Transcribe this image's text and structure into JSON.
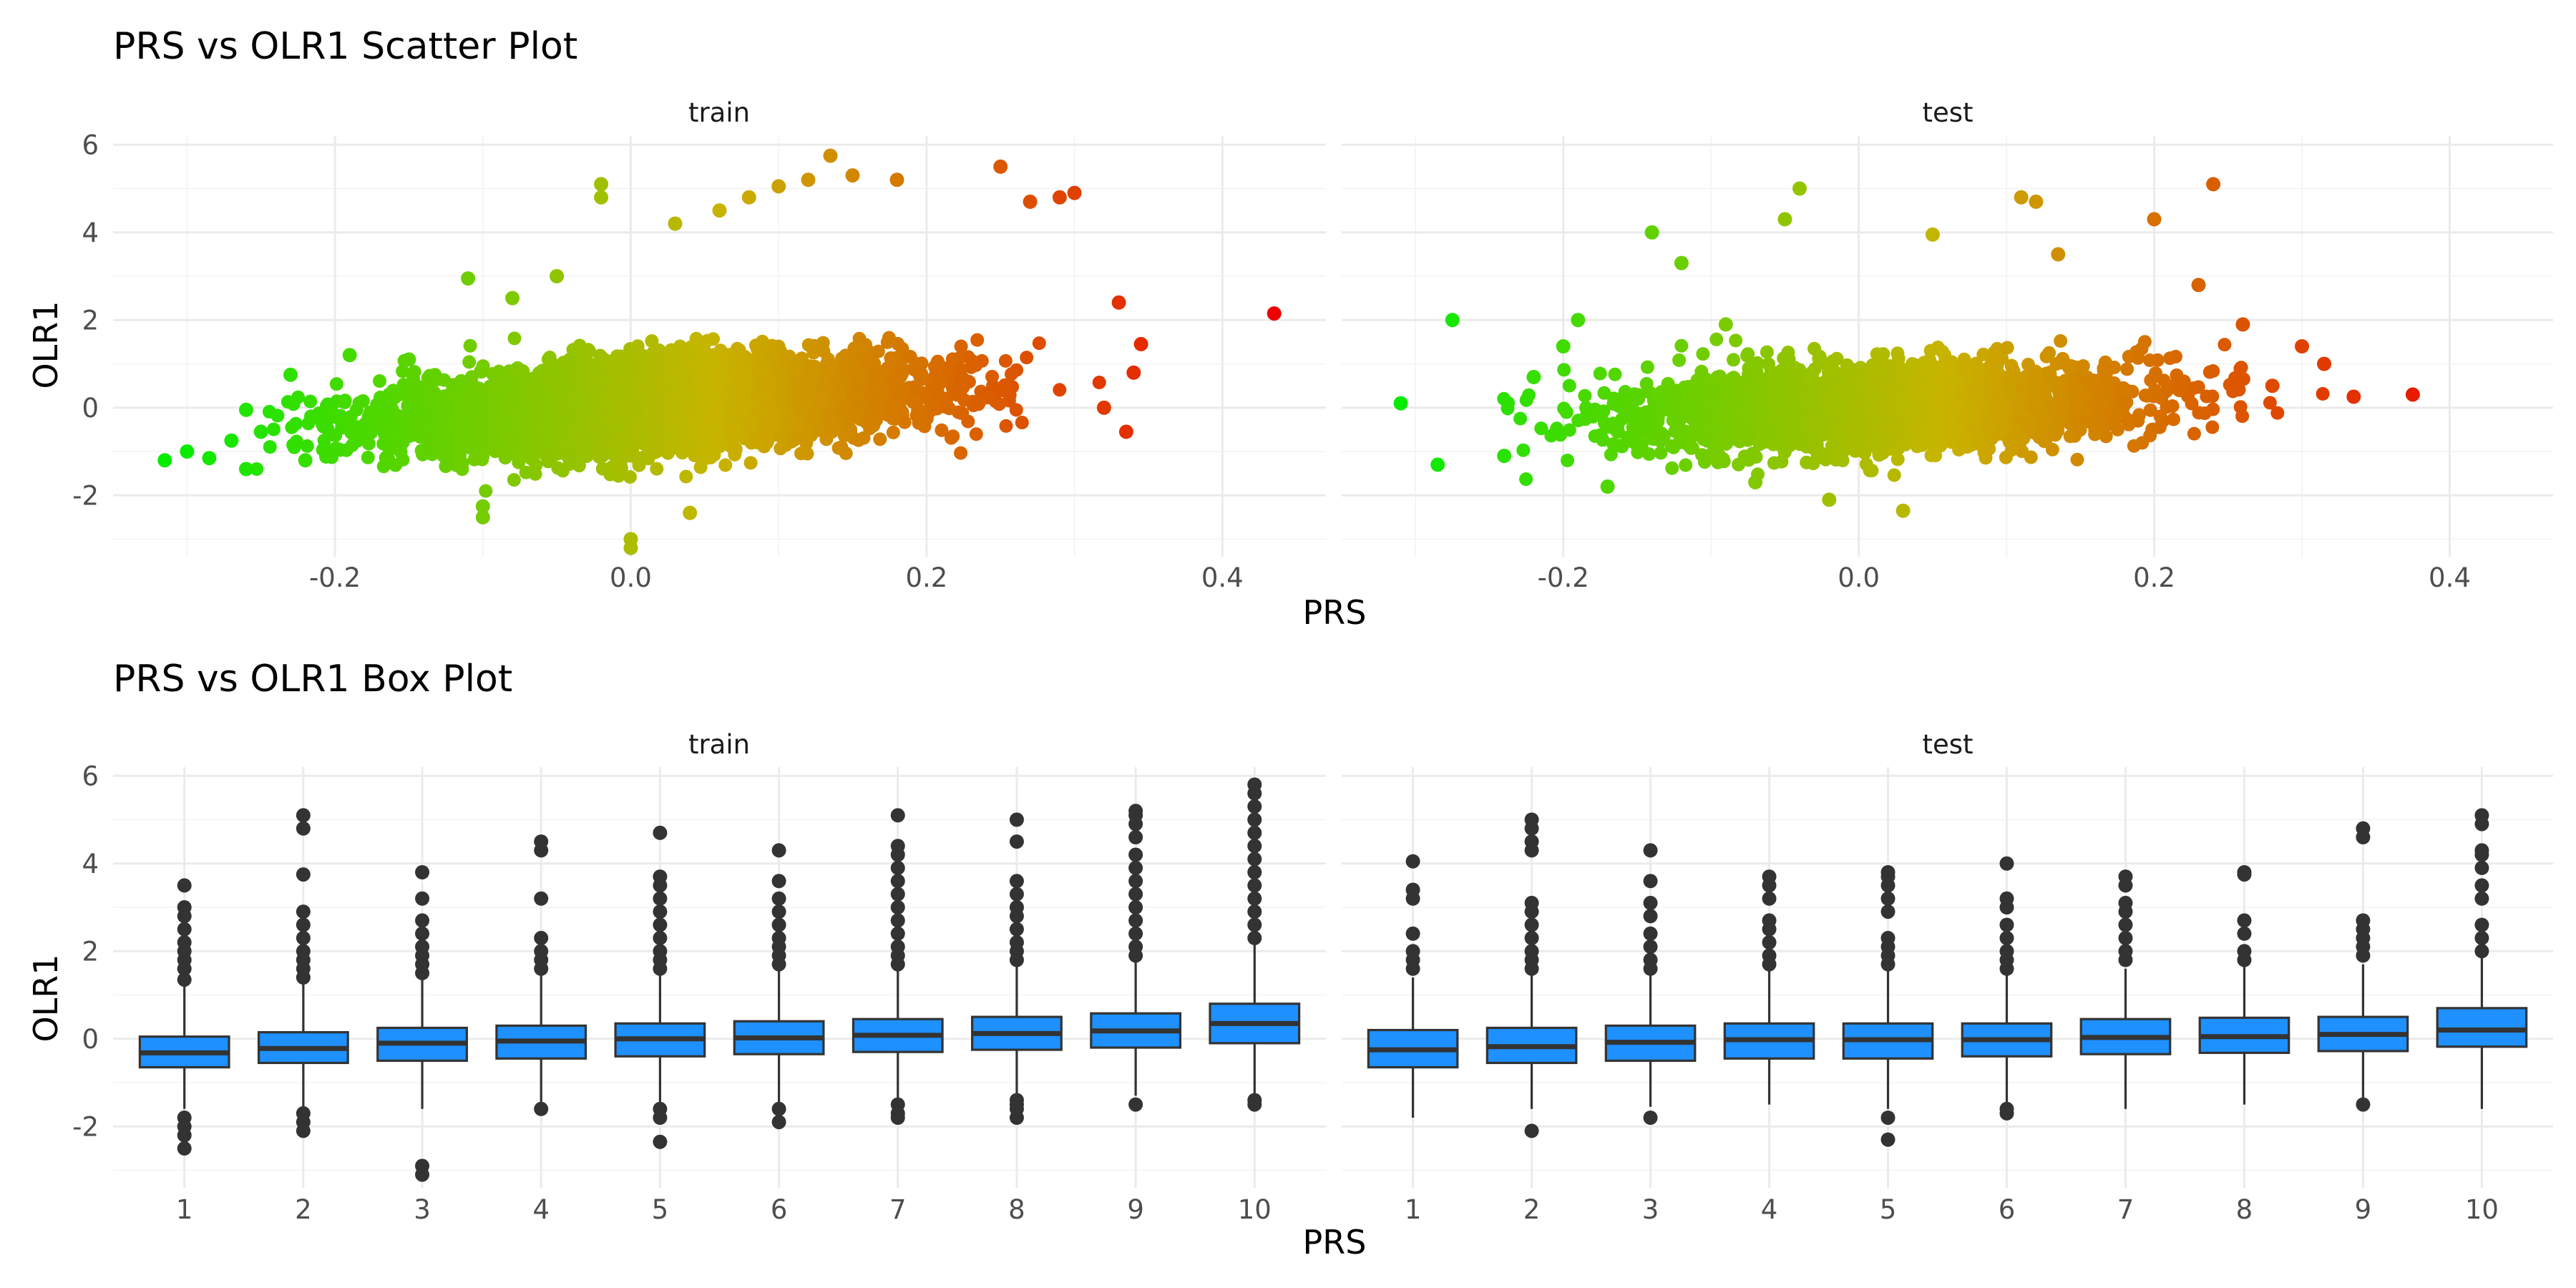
{
  "chart_data": [
    {
      "type": "scatter",
      "title": "PRS vs OLR1 Scatter Plot",
      "xlabel": "PRS",
      "ylabel": "OLR1",
      "xlim": [
        -0.35,
        0.47
      ],
      "ylim": [
        -3.4,
        6.2
      ],
      "x_ticks": [
        -0.2,
        0.0,
        0.2,
        0.4
      ],
      "x_tick_labels": [
        "-0.2",
        "0.0",
        "0.2",
        "0.4"
      ],
      "y_ticks": [
        -2,
        0,
        2,
        4,
        6
      ],
      "y_tick_labels": [
        "-2",
        "0",
        "2",
        "4",
        "6"
      ],
      "grid": true,
      "legend": "none",
      "color_scale": {
        "low": "#00ee00",
        "mid": "#c8b400",
        "high": "#ee0000",
        "mapped_to": "PRS"
      },
      "facets": [
        {
          "label": "train",
          "points": [
            [
              -0.315,
              -1.2
            ],
            [
              -0.3,
              -1.0
            ],
            [
              -0.285,
              -1.15
            ],
            [
              -0.27,
              -0.75
            ],
            [
              -0.26,
              -1.4
            ],
            [
              -0.26,
              -0.05
            ],
            [
              -0.25,
              -0.55
            ],
            [
              -0.23,
              0.75
            ],
            [
              -0.22,
              -1.2
            ],
            [
              -0.2,
              -0.2
            ],
            [
              -0.19,
              1.2
            ],
            [
              -0.15,
              1.1
            ],
            [
              -0.11,
              2.95
            ],
            [
              -0.1,
              -2.25
            ],
            [
              -0.1,
              -2.5
            ],
            [
              -0.08,
              2.5
            ],
            [
              -0.05,
              3.0
            ],
            [
              -0.02,
              5.1
            ],
            [
              -0.02,
              4.8
            ],
            [
              0.0,
              -3.0
            ],
            [
              0.0,
              -3.2
            ],
            [
              0.03,
              4.2
            ],
            [
              0.04,
              -2.4
            ],
            [
              0.06,
              4.5
            ],
            [
              0.08,
              4.8
            ],
            [
              0.1,
              5.05
            ],
            [
              0.12,
              5.2
            ],
            [
              0.135,
              5.75
            ],
            [
              0.15,
              5.3
            ],
            [
              0.18,
              5.2
            ],
            [
              0.25,
              5.5
            ],
            [
              0.27,
              4.7
            ],
            [
              0.29,
              4.8
            ],
            [
              0.3,
              4.9
            ],
            [
              0.32,
              0.0
            ],
            [
              0.33,
              2.4
            ],
            [
              0.335,
              -0.55
            ],
            [
              0.34,
              0.8
            ],
            [
              0.345,
              1.45
            ],
            [
              0.435,
              2.15
            ]
          ]
        },
        {
          "label": "test",
          "points": [
            [
              -0.31,
              0.1
            ],
            [
              -0.285,
              -1.3
            ],
            [
              -0.275,
              2.0
            ],
            [
              -0.24,
              -1.1
            ],
            [
              -0.22,
              0.7
            ],
            [
              -0.2,
              1.4
            ],
            [
              -0.19,
              2.0
            ],
            [
              -0.17,
              -1.8
            ],
            [
              -0.14,
              4.0
            ],
            [
              -0.12,
              3.3
            ],
            [
              -0.09,
              1.9
            ],
            [
              -0.07,
              -1.7
            ],
            [
              -0.05,
              4.3
            ],
            [
              -0.04,
              5.0
            ],
            [
              -0.02,
              -2.1
            ],
            [
              0.03,
              -2.35
            ],
            [
              0.05,
              3.95
            ],
            [
              0.11,
              4.8
            ],
            [
              0.12,
              4.7
            ],
            [
              0.135,
              3.5
            ],
            [
              0.2,
              4.3
            ],
            [
              0.23,
              2.8
            ],
            [
              0.24,
              5.1
            ],
            [
              0.26,
              1.9
            ],
            [
              0.28,
              0.5
            ],
            [
              0.3,
              1.4
            ],
            [
              0.315,
              1.0
            ],
            [
              0.335,
              0.25
            ],
            [
              0.375,
              0.3
            ]
          ]
        }
      ]
    },
    {
      "type": "box",
      "title": "PRS vs OLR1 Box Plot",
      "xlabel": "PRS",
      "ylabel": "OLR1",
      "categories": [
        "1",
        "2",
        "3",
        "4",
        "5",
        "6",
        "7",
        "8",
        "9",
        "10"
      ],
      "ylim": [
        -3.4,
        6.2
      ],
      "y_ticks": [
        -2,
        0,
        2,
        4,
        6
      ],
      "y_tick_labels": [
        "-2",
        "0",
        "2",
        "4",
        "6"
      ],
      "grid": true,
      "legend": "none",
      "box_color": "#1e90ff",
      "facets": [
        {
          "label": "train",
          "boxes": [
            {
              "q1": -0.65,
              "median": -0.32,
              "q3": 0.05,
              "low": -1.6,
              "high": 1.2,
              "outliers": [
                -1.8,
                -2.0,
                -2.2,
                -2.5,
                1.35,
                1.6,
                1.8,
                2.0,
                2.2,
                2.5,
                2.8,
                3.0,
                3.5
              ]
            },
            {
              "q1": -0.55,
              "median": -0.22,
              "q3": 0.15,
              "low": -1.6,
              "high": 1.3,
              "outliers": [
                -1.7,
                -1.9,
                -2.1,
                1.4,
                1.6,
                1.8,
                2.0,
                2.3,
                2.6,
                2.9,
                3.75,
                4.8,
                5.1
              ]
            },
            {
              "q1": -0.5,
              "median": -0.1,
              "q3": 0.25,
              "low": -1.6,
              "high": 1.4,
              "outliers": [
                -2.9,
                -3.1,
                1.5,
                1.7,
                1.9,
                2.1,
                2.4,
                2.7,
                3.2,
                3.8
              ]
            },
            {
              "q1": -0.45,
              "median": -0.05,
              "q3": 0.3,
              "low": -1.5,
              "high": 1.5,
              "outliers": [
                -1.6,
                1.6,
                1.8,
                2.0,
                2.3,
                3.2,
                4.3,
                4.5
              ]
            },
            {
              "q1": -0.4,
              "median": 0.0,
              "q3": 0.35,
              "low": -1.5,
              "high": 1.5,
              "outliers": [
                -1.6,
                -1.8,
                -2.35,
                1.6,
                1.8,
                2.0,
                2.3,
                2.6,
                2.9,
                3.2,
                3.5,
                3.7,
                4.7
              ]
            },
            {
              "q1": -0.35,
              "median": 0.02,
              "q3": 0.4,
              "low": -1.5,
              "high": 1.55,
              "outliers": [
                -1.6,
                -1.9,
                1.7,
                1.9,
                2.1,
                2.3,
                2.6,
                2.9,
                3.2,
                3.6,
                4.3
              ]
            },
            {
              "q1": -0.3,
              "median": 0.08,
              "q3": 0.45,
              "low": -1.4,
              "high": 1.6,
              "outliers": [
                -1.5,
                -1.7,
                -1.8,
                1.7,
                1.9,
                2.1,
                2.4,
                2.7,
                3.0,
                3.3,
                3.6,
                3.9,
                4.2,
                4.4,
                5.1
              ]
            },
            {
              "q1": -0.25,
              "median": 0.12,
              "q3": 0.5,
              "low": -1.35,
              "high": 1.65,
              "outliers": [
                -1.4,
                -1.5,
                -1.6,
                -1.8,
                1.8,
                2.0,
                2.2,
                2.5,
                2.8,
                3.0,
                3.3,
                3.6,
                4.5,
                5.0
              ]
            },
            {
              "q1": -0.2,
              "median": 0.18,
              "q3": 0.58,
              "low": -1.3,
              "high": 1.8,
              "outliers": [
                -1.5,
                1.9,
                2.1,
                2.4,
                2.7,
                3.0,
                3.3,
                3.6,
                3.9,
                4.2,
                4.6,
                4.9,
                5.1,
                5.2
              ]
            },
            {
              "q1": -0.1,
              "median": 0.35,
              "q3": 0.8,
              "low": -1.3,
              "high": 2.2,
              "outliers": [
                -1.4,
                -1.5,
                2.3,
                2.6,
                2.9,
                3.2,
                3.5,
                3.8,
                4.1,
                4.4,
                4.7,
                5.0,
                5.3,
                5.6,
                5.8
              ]
            }
          ]
        },
        {
          "label": "test",
          "boxes": [
            {
              "q1": -0.65,
              "median": -0.25,
              "q3": 0.2,
              "low": -1.8,
              "high": 1.4,
              "outliers": [
                1.6,
                1.8,
                2.0,
                2.4,
                3.2,
                3.4,
                4.05
              ]
            },
            {
              "q1": -0.55,
              "median": -0.18,
              "q3": 0.25,
              "low": -1.6,
              "high": 1.45,
              "outliers": [
                -2.1,
                1.6,
                1.8,
                2.0,
                2.3,
                2.6,
                2.9,
                3.1,
                4.3,
                4.5,
                4.8,
                5.0
              ]
            },
            {
              "q1": -0.5,
              "median": -0.08,
              "q3": 0.3,
              "low": -1.55,
              "high": 1.5,
              "outliers": [
                -1.8,
                1.6,
                1.8,
                2.1,
                2.4,
                2.8,
                3.1,
                3.6,
                4.3
              ]
            },
            {
              "q1": -0.45,
              "median": -0.02,
              "q3": 0.35,
              "low": -1.5,
              "high": 1.55,
              "outliers": [
                1.7,
                1.9,
                2.2,
                2.5,
                2.7,
                3.2,
                3.5,
                3.7
              ]
            },
            {
              "q1": -0.45,
              "median": -0.02,
              "q3": 0.35,
              "low": -1.6,
              "high": 1.55,
              "outliers": [
                -1.8,
                -2.3,
                1.7,
                1.9,
                2.1,
                2.3,
                2.9,
                3.2,
                3.5,
                3.7,
                3.8
              ]
            },
            {
              "q1": -0.4,
              "median": -0.02,
              "q3": 0.35,
              "low": -1.5,
              "high": 1.5,
              "outliers": [
                -1.6,
                -1.7,
                1.6,
                1.8,
                2.0,
                2.3,
                2.6,
                3.0,
                3.2,
                4.0
              ]
            },
            {
              "q1": -0.35,
              "median": 0.03,
              "q3": 0.45,
              "low": -1.6,
              "high": 1.6,
              "outliers": [
                1.8,
                2.0,
                2.3,
                2.6,
                2.9,
                3.1,
                3.5,
                3.7
              ]
            },
            {
              "q1": -0.32,
              "median": 0.05,
              "q3": 0.48,
              "low": -1.5,
              "high": 1.65,
              "outliers": [
                1.8,
                2.0,
                2.4,
                2.7,
                3.75,
                3.8
              ]
            },
            {
              "q1": -0.28,
              "median": 0.1,
              "q3": 0.5,
              "low": -1.4,
              "high": 1.7,
              "outliers": [
                -1.5,
                1.9,
                2.1,
                2.3,
                2.5,
                2.7,
                4.6,
                4.8
              ]
            },
            {
              "q1": -0.18,
              "median": 0.2,
              "q3": 0.7,
              "low": -1.6,
              "high": 1.85,
              "outliers": [
                2.0,
                2.3,
                2.6,
                3.2,
                3.5,
                3.9,
                4.2,
                4.3,
                4.9,
                5.1
              ]
            }
          ]
        }
      ]
    }
  ]
}
